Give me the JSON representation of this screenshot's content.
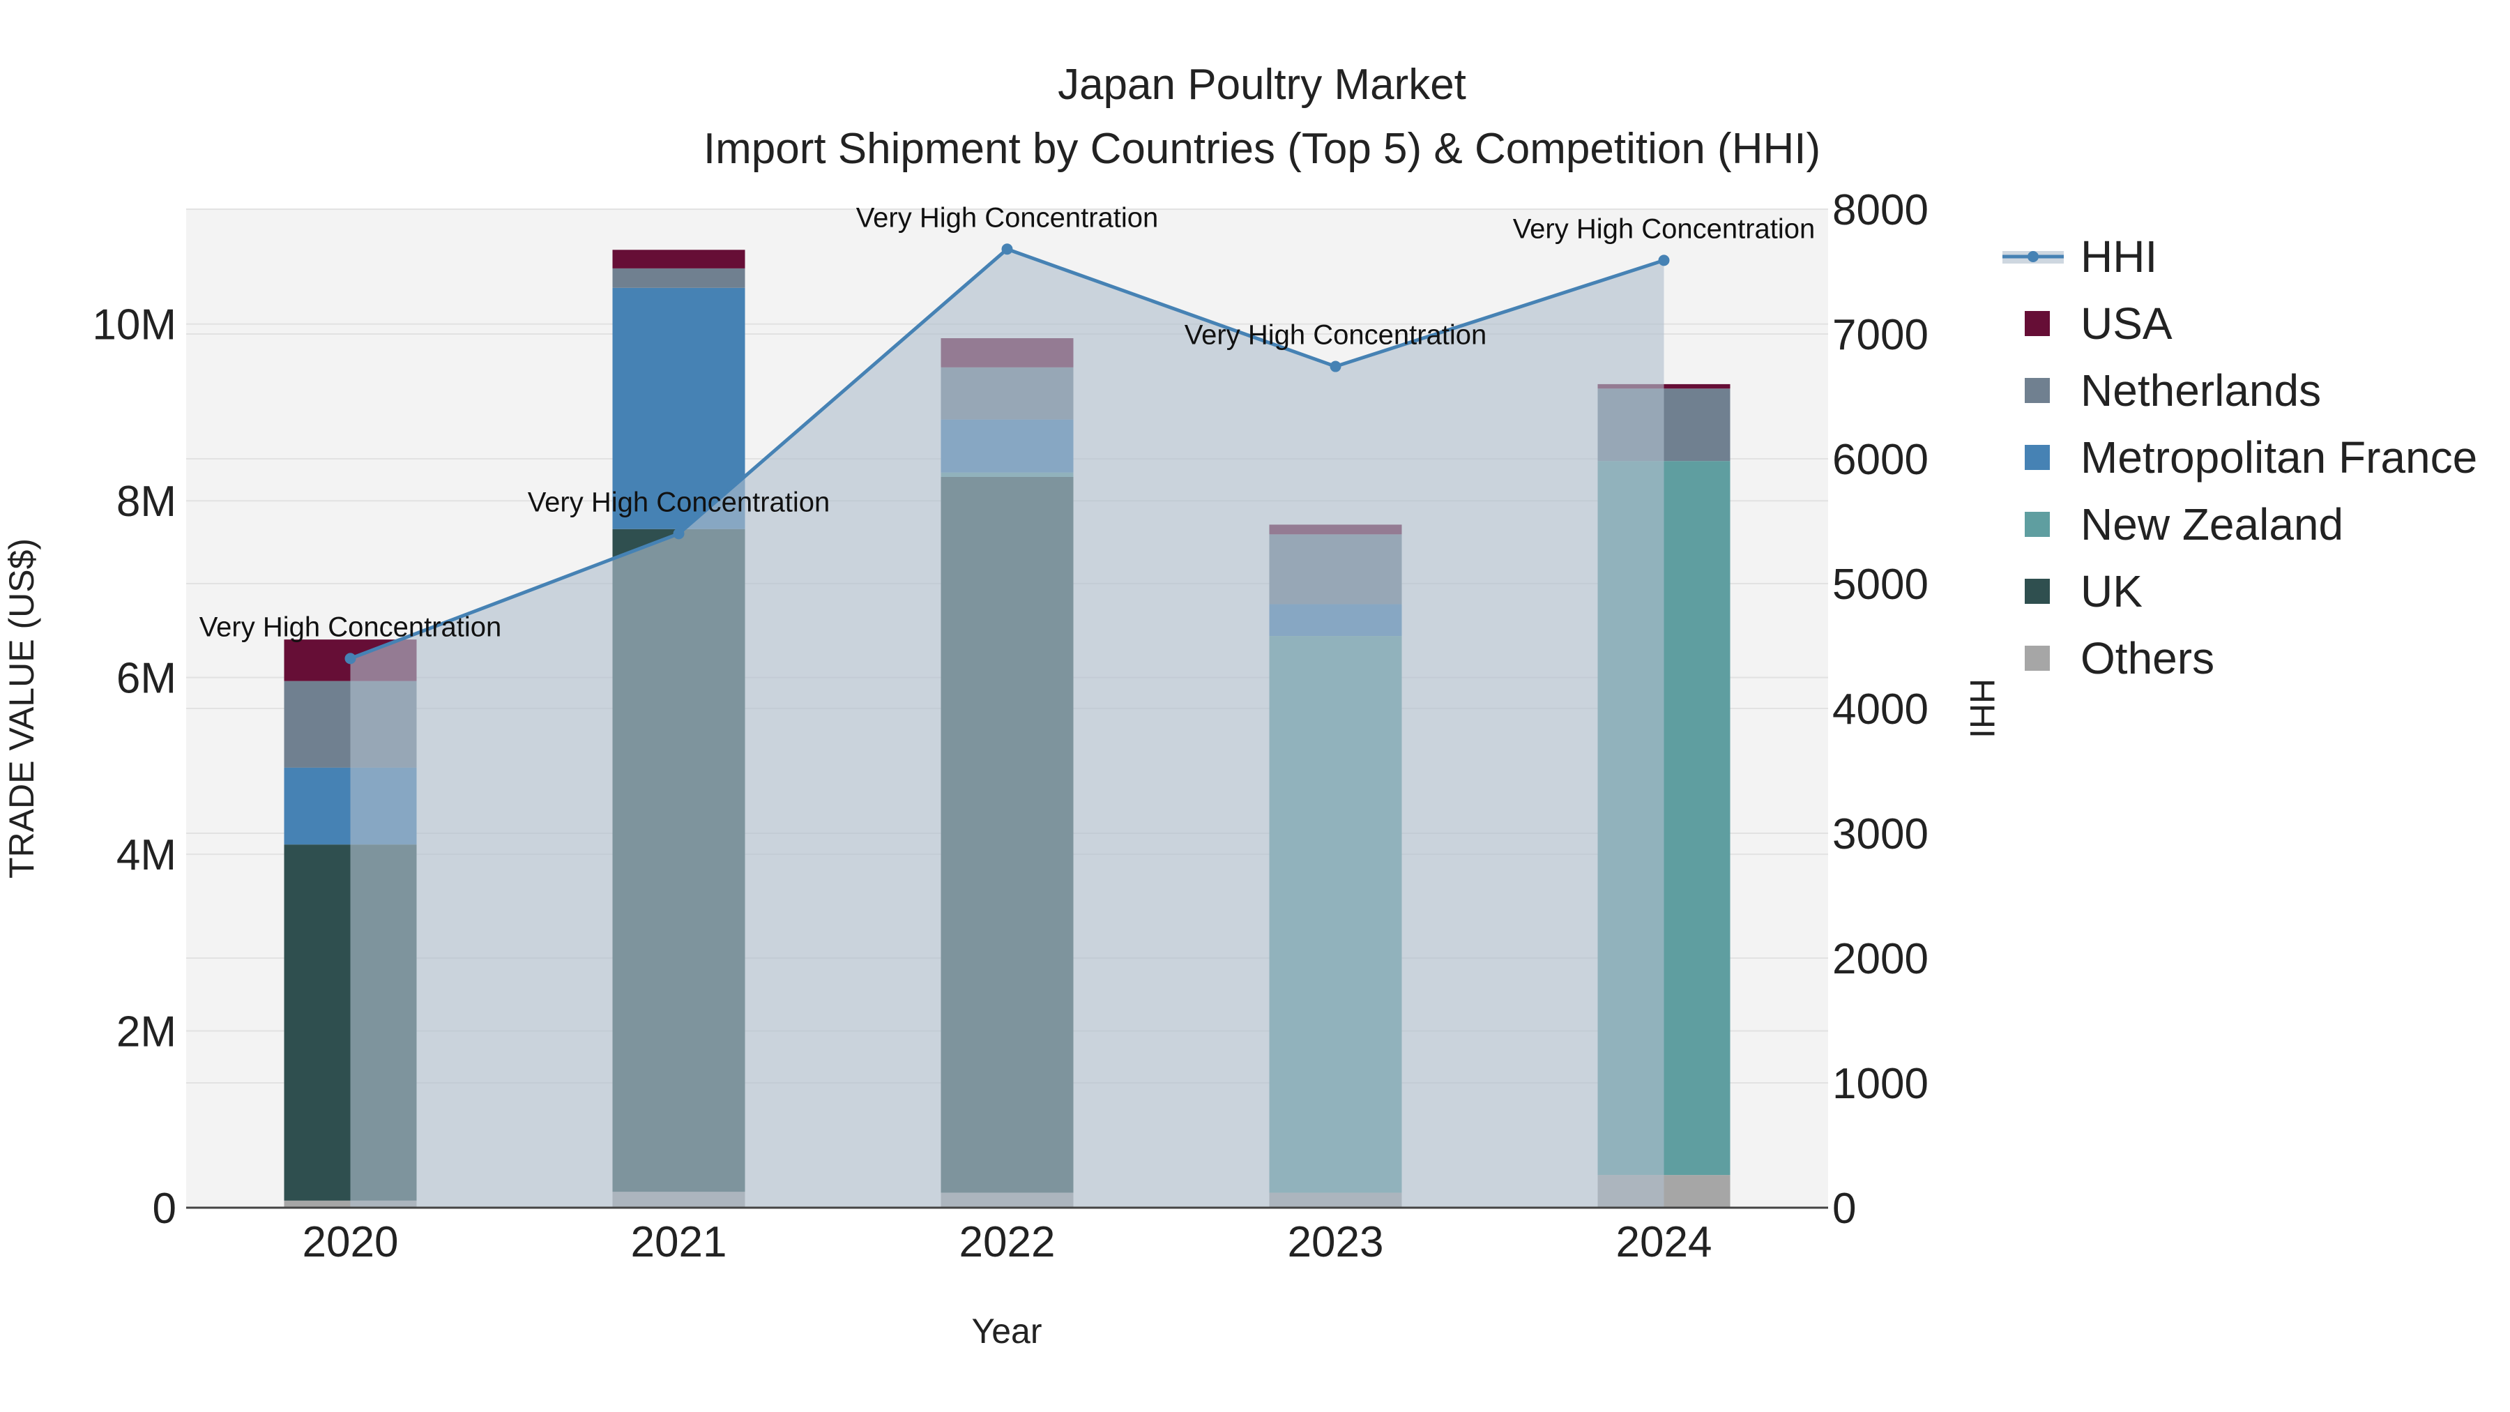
{
  "chart_data": {
    "type": "bar",
    "stacked": true,
    "title": "Japan Poultry Market",
    "subtitle": "Import Shipment by Countries (Top 5) & Competition (HHI)",
    "xlabel": "Year",
    "ylabel": "TRADE VALUE (US$)",
    "y2label": "HHI",
    "categories": [
      "2020",
      "2021",
      "2022",
      "2023",
      "2024"
    ],
    "ylim": [
      0,
      11300000
    ],
    "y2lim": [
      0,
      8000
    ],
    "y_ticks": [
      {
        "value": 0,
        "label": "0"
      },
      {
        "value": 2000000,
        "label": "2M"
      },
      {
        "value": 4000000,
        "label": "4M"
      },
      {
        "value": 6000000,
        "label": "6M"
      },
      {
        "value": 8000000,
        "label": "8M"
      },
      {
        "value": 10000000,
        "label": "10M"
      }
    ],
    "y2_ticks": [
      {
        "value": 0,
        "label": "0"
      },
      {
        "value": 1000,
        "label": "1000"
      },
      {
        "value": 2000,
        "label": "2000"
      },
      {
        "value": 3000,
        "label": "3000"
      },
      {
        "value": 4000,
        "label": "4000"
      },
      {
        "value": 5000,
        "label": "5000"
      },
      {
        "value": 6000,
        "label": "6000"
      },
      {
        "value": 7000,
        "label": "7000"
      },
      {
        "value": 8000,
        "label": "8000"
      }
    ],
    "series": [
      {
        "name": "Others",
        "color": "#a6a6a6",
        "values": [
          80000,
          180000,
          170000,
          170000,
          370000
        ]
      },
      {
        "name": "UK",
        "color": "#2f4f4f",
        "values": [
          4030000,
          7500000,
          8100000,
          0,
          0
        ]
      },
      {
        "name": "New Zealand",
        "color": "#5f9ea0",
        "values": [
          0,
          0,
          50000,
          6300000,
          8080000
        ]
      },
      {
        "name": "Metropolitan France",
        "color": "#4682b4",
        "values": [
          870000,
          2730000,
          600000,
          360000,
          0
        ]
      },
      {
        "name": "Netherlands",
        "color": "#708090",
        "values": [
          980000,
          220000,
          590000,
          790000,
          820000
        ]
      },
      {
        "name": "USA",
        "color": "#660e36",
        "values": [
          470000,
          210000,
          330000,
          110000,
          50000
        ]
      }
    ],
    "hhi": {
      "name": "HHI",
      "color": "#4682b4",
      "values": [
        4400,
        5400,
        7680,
        6740,
        7590
      ],
      "annotations": [
        "Very High Concentration",
        "Very High Concentration",
        "Very High Concentration",
        "Very High Concentration",
        "Very High Concentration"
      ]
    },
    "legend_order": [
      "HHI",
      "USA",
      "Netherlands",
      "Metropolitan France",
      "New Zealand",
      "UK",
      "Others"
    ],
    "legend_position": "right"
  }
}
